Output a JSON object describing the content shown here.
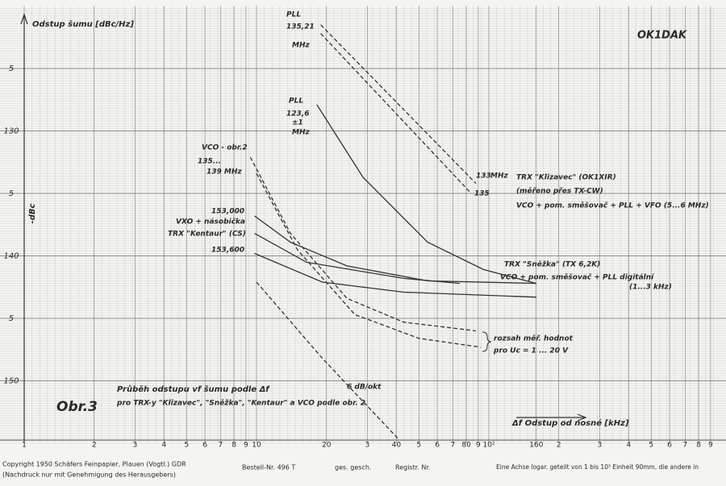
{
  "chart_data": {
    "type": "line",
    "title": "Průběh odstupu vf šumu podle Δf",
    "subtitle": "pro TRX-y \"Klizavec\", \"Sněžka\", \"Kentaur\" a VCO podle obr. 2",
    "figure_label": "Obr.3",
    "y_label": "Odstup šumu [dBc/Hz]",
    "y_side_label": "-dBc",
    "x_label": "Δf  Odstup od nosné [kHz]",
    "author": "OK1DAK",
    "x_scale": "log",
    "grid": true,
    "xlim": [
      1,
      1000
    ],
    "ylim": [
      155,
      120
    ],
    "xticks": [
      1,
      2,
      3,
      4,
      5,
      6,
      7,
      8,
      9,
      10,
      20,
      {
        "value": 30,
        "label": "3"
      },
      40,
      {
        "value": 50,
        "label": "5"
      },
      {
        "value": 60,
        "label": "6"
      },
      {
        "value": 70,
        "label": "7"
      },
      80,
      {
        "value": 90,
        "label": "9"
      },
      {
        "value": 100,
        "label": "10²"
      },
      160,
      {
        "value": 200,
        "label": "2"
      },
      {
        "value": 300,
        "label": "3"
      },
      {
        "value": 400,
        "label": "4"
      },
      {
        "value": 500,
        "label": "5"
      },
      {
        "value": 600,
        "label": "6"
      },
      {
        "value": 700,
        "label": "7"
      },
      {
        "value": 800,
        "label": "8"
      },
      {
        "value": 900,
        "label": "9"
      }
    ],
    "yticks": [
      {
        "value": 125,
        "label": "5"
      },
      130,
      {
        "value": 135,
        "label": "5"
      },
      140,
      {
        "value": 145,
        "label": "5"
      },
      150
    ],
    "series": [
      {
        "name": "PLL 135,21 MHz (133)",
        "color": "#333333",
        "dashed": true,
        "x": [
          18.9,
          88
        ],
        "values": [
          121.5,
          134.2
        ]
      },
      {
        "name": "PLL 135,21 MHz (135)",
        "color": "#333333",
        "dashed": true,
        "x": [
          18.9,
          84
        ],
        "values": [
          122.2,
          135.0
        ]
      },
      {
        "name": "PLL 123,6 ±1 MHz",
        "color": "#333333",
        "dashed": false,
        "x": [
          18.2,
          28.7,
          54.5,
          95,
          160
        ],
        "values": [
          127.9,
          133.7,
          138.9,
          141.1,
          142.2
        ]
      },
      {
        "name": "VCO obr.2 (135)",
        "color": "#333333",
        "dashed": true,
        "x": [
          9.4,
          14,
          24.5,
          43,
          88
        ],
        "values": [
          132.1,
          138.2,
          143.4,
          145.3,
          146.0
        ]
      },
      {
        "name": "VCO obr.2 (139)",
        "color": "#333333",
        "dashed": true,
        "x": [
          10,
          15,
          26.5,
          50,
          92
        ],
        "values": [
          133.4,
          139.5,
          144.7,
          146.6,
          147.3
        ]
      },
      {
        "name": "TRX Klizavec",
        "color": "#333333",
        "dashed": false,
        "x": [
          9.8,
          14,
          24.5,
          54.5,
          160
        ],
        "values": [
          136.8,
          138.9,
          140.8,
          142.0,
          142.2
        ]
      },
      {
        "name": "TRX Sněžka",
        "color": "#333333",
        "dashed": false,
        "x": [
          9.8,
          16.4,
          43,
          75
        ],
        "values": [
          138.2,
          140.5,
          141.8,
          142.2
        ]
      },
      {
        "name": "TRX Kentaur",
        "color": "#333333",
        "dashed": false,
        "x": [
          9.8,
          19.2,
          43,
          160
        ],
        "values": [
          139.8,
          142.1,
          142.9,
          143.3
        ]
      },
      {
        "name": "6 dB/okt",
        "color": "#333333",
        "dashed": true,
        "x": [
          10,
          19.2,
          41
        ],
        "values": [
          142.1,
          148.2,
          154.7
        ]
      }
    ],
    "annotations": [
      "PLL",
      "135,21",
      "MHz",
      "PLL",
      "123,6",
      "±1",
      "MHz",
      "VCO - obr.2",
      "135...",
      "139 MHz",
      "133",
      "135",
      "MHz",
      "TRX \"Klizavec\" (OK1XIR)",
      "(měřeno přes TX-CW)",
      "VCO + pom. směšovač + PLL + VFO (5...6 MHz)",
      "153,000",
      "VXO + násobička",
      "TRX \"Kentaur\" (CS)",
      "153,600",
      "TRX \"Sněžka\" (TX 6,2K)",
      "VCO + pom. směšovač + PLL digitální",
      "(1...3 kHz)",
      "rozsah měř. hodnot",
      "pro Uc = 1 ... 20 V",
      "6 dB/okt"
    ],
    "footer": [
      "Copyright 1950 Schäfers Feinpapier, Plauen (Vogtl.) GDR",
      "(Nachdruck nur mit Genehmigung des Herausgebers)",
      "Bestell-Nr. 496 T",
      "ges. gesch.",
      "Registr. Nr.",
      "Eine Achse logar. geteilt von 1 bis 10³ Einheit 90mm, die andere in"
    ]
  }
}
